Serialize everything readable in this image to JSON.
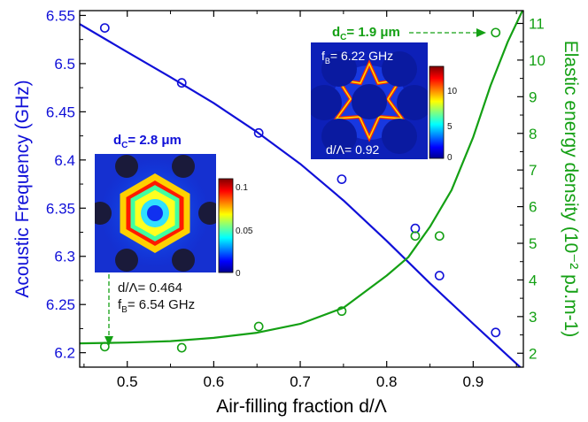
{
  "chart_data": {
    "type": "scatter",
    "x_label": "Air-filling fraction d/Λ",
    "xlim": [
      0.445,
      0.958
    ],
    "x_ticks": [
      0.5,
      0.6,
      0.7,
      0.8,
      0.9
    ],
    "x_tick_labels": [
      "0.5",
      "0.6",
      "0.7",
      "0.8",
      "0.9"
    ],
    "y_left": {
      "label": "Acoustic  Frequency (GHz)",
      "lim": [
        6.185,
        6.555
      ],
      "ticks": [
        6.2,
        6.25,
        6.3,
        6.35,
        6.4,
        6.45,
        6.5,
        6.55
      ],
      "tick_labels": [
        "6.2",
        "6.25",
        "6.3",
        "6.35",
        "6.4",
        "6.45",
        "6.5",
        "6.55"
      ],
      "color": "#1010d8"
    },
    "y_right": {
      "label": "Elastic energy density (10⁻² pJ.m-1)",
      "lim": [
        1.62,
        11.35
      ],
      "ticks": [
        2,
        3,
        4,
        5,
        6,
        7,
        8,
        9,
        10,
        11
      ],
      "tick_labels": [
        "2",
        "3",
        "4",
        "5",
        "6",
        "7",
        "8",
        "9",
        "10",
        "11"
      ],
      "color": "#14a014"
    },
    "series": [
      {
        "axis": "left",
        "color": "#1010d8",
        "x": [
          0.474,
          0.563,
          0.652,
          0.748,
          0.833,
          0.861,
          0.926
        ],
        "y": [
          6.537,
          6.48,
          6.428,
          6.38,
          6.329,
          6.28,
          6.221
        ],
        "fit_x": [
          0.445,
          0.5,
          0.55,
          0.6,
          0.65,
          0.7,
          0.75,
          0.8,
          0.85,
          0.9,
          0.958
        ],
        "fit_y": [
          6.541,
          6.512,
          6.486,
          6.459,
          6.429,
          6.396,
          6.358,
          6.316,
          6.272,
          6.23,
          6.182
        ]
      },
      {
        "axis": "right",
        "color": "#14a014",
        "x": [
          0.474,
          0.563,
          0.652,
          0.748,
          0.833,
          0.861,
          0.926
        ],
        "y": [
          2.18,
          2.15,
          2.73,
          3.15,
          5.2,
          5.2,
          10.75
        ],
        "fit_x": [
          0.445,
          0.5,
          0.55,
          0.6,
          0.65,
          0.7,
          0.75,
          0.8,
          0.825,
          0.85,
          0.875,
          0.9,
          0.92,
          0.94,
          0.957
        ],
        "fit_y": [
          2.27,
          2.29,
          2.33,
          2.42,
          2.56,
          2.8,
          3.24,
          4.12,
          4.62,
          5.45,
          6.45,
          7.9,
          9.3,
          10.5,
          11.35
        ]
      }
    ],
    "annotations": {
      "inset_large": {
        "dc_label": "d",
        "dc_sub": "C",
        "dc_value": "= 2.8 μm",
        "colorbar_ticks": [
          "0.1",
          "0.05",
          "0"
        ],
        "ratio": "d/Λ= 0.464",
        "freq_label": "f",
        "freq_sub": "B",
        "freq_value": "= 6.54 GHz"
      },
      "inset_small": {
        "dc_label": "d",
        "dc_sub": "C",
        "dc_value": "= 1.9 μm",
        "freq_label": "f",
        "freq_sub": "B",
        "freq_value": "= 6.22 GHz",
        "ratio": "d/Λ= 0.92",
        "colorbar_ticks": [
          "10",
          "5",
          "0"
        ]
      }
    }
  }
}
